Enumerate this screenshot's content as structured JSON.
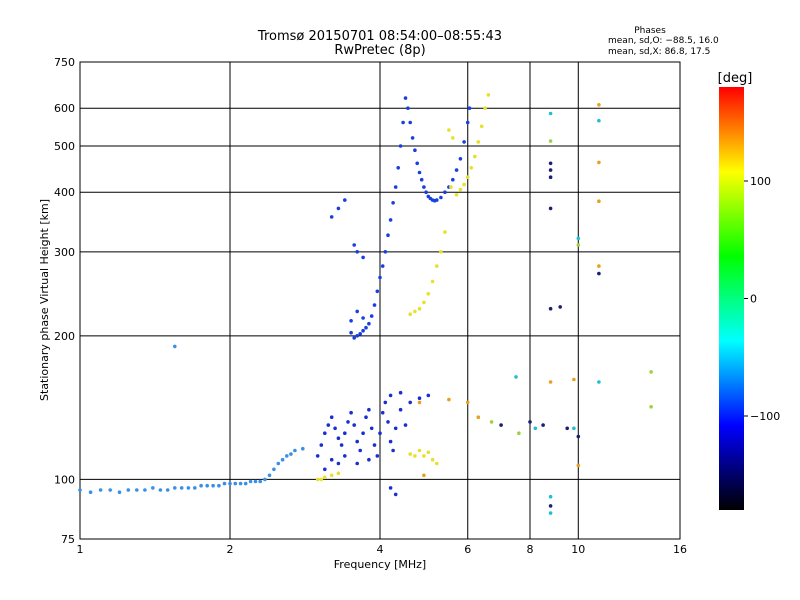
{
  "chart_data": {
    "type": "scatter",
    "title": "Tromsø 20150701 08:54:00–08:55:43",
    "subtitle": "RwPretec (8p)",
    "xlabel": "Frequency [MHz]",
    "ylabel": "Stationary phase Virtual Height [km]",
    "x_scale": "log",
    "y_scale": "log",
    "xlim": [
      1,
      16
    ],
    "ylim": [
      75,
      750
    ],
    "x_ticks": [
      1,
      2,
      4,
      6,
      8,
      10,
      16
    ],
    "x_tick_labels": [
      "1",
      "2",
      "4",
      "6",
      "8",
      "10",
      "16"
    ],
    "y_ticks": [
      75,
      100,
      200,
      300,
      400,
      500,
      600,
      750
    ],
    "y_tick_labels": [
      "75",
      "100",
      "200",
      "300",
      "400",
      "500",
      "600",
      "750"
    ],
    "grid": true,
    "phase_stats": {
      "heading": "Phases",
      "line_o": "mean, sd,O: −88.5, 16.0",
      "line_x": "mean, sd,X:  86.8, 17.5"
    },
    "colorbar": {
      "label": "[deg]",
      "range": [
        -180,
        180
      ],
      "ticks": [
        100,
        0,
        -100
      ],
      "tick_labels": [
        "100",
        "0",
        "−100"
      ],
      "colors": [
        "#ff0000",
        "#ffff00",
        "#00ff00",
        "#00ffff",
        "#0000ff",
        "#000000"
      ]
    },
    "series": [
      {
        "name": "",
        "color": "#3b8fe6",
        "points": [
          [
            1.0,
            95
          ],
          [
            1.05,
            94
          ],
          [
            1.1,
            95
          ],
          [
            1.15,
            95
          ],
          [
            1.2,
            94
          ],
          [
            1.25,
            95
          ],
          [
            1.3,
            95
          ],
          [
            1.35,
            95
          ],
          [
            1.4,
            96
          ],
          [
            1.45,
            95
          ],
          [
            1.5,
            95
          ],
          [
            1.55,
            96
          ],
          [
            1.6,
            96
          ],
          [
            1.65,
            96
          ],
          [
            1.7,
            96
          ],
          [
            1.75,
            97
          ],
          [
            1.8,
            97
          ],
          [
            1.85,
            97
          ],
          [
            1.9,
            97
          ],
          [
            1.95,
            98
          ],
          [
            2.0,
            98
          ],
          [
            2.05,
            98
          ],
          [
            2.1,
            98
          ],
          [
            2.15,
            98
          ],
          [
            2.2,
            99
          ],
          [
            2.25,
            99
          ],
          [
            2.3,
            99
          ],
          [
            2.35,
            100
          ],
          [
            2.4,
            102
          ],
          [
            2.45,
            105
          ],
          [
            2.5,
            108
          ],
          [
            2.55,
            110
          ],
          [
            2.6,
            112
          ],
          [
            2.65,
            113
          ],
          [
            2.7,
            115
          ],
          [
            2.8,
            116
          ],
          [
            1.55,
            190
          ]
        ]
      },
      {
        "name": "",
        "color": "#1a3fe0",
        "points": [
          [
            3.5,
            203
          ],
          [
            3.55,
            198
          ],
          [
            3.6,
            200
          ],
          [
            3.65,
            202
          ],
          [
            3.7,
            205
          ],
          [
            3.75,
            208
          ],
          [
            3.8,
            212
          ],
          [
            3.85,
            220
          ],
          [
            3.9,
            232
          ],
          [
            3.95,
            248
          ],
          [
            4.0,
            265
          ],
          [
            4.05,
            280
          ],
          [
            4.1,
            300
          ],
          [
            4.15,
            325
          ],
          [
            4.2,
            350
          ],
          [
            4.25,
            380
          ],
          [
            4.3,
            410
          ],
          [
            4.35,
            450
          ],
          [
            4.4,
            500
          ],
          [
            4.45,
            560
          ],
          [
            4.5,
            630
          ],
          [
            4.55,
            600
          ],
          [
            4.6,
            560
          ],
          [
            4.65,
            520
          ],
          [
            4.7,
            490
          ],
          [
            4.75,
            460
          ],
          [
            4.8,
            440
          ],
          [
            4.85,
            425
          ],
          [
            4.9,
            410
          ],
          [
            4.95,
            400
          ],
          [
            5.0,
            392
          ],
          [
            5.05,
            388
          ],
          [
            5.1,
            385
          ],
          [
            5.15,
            384
          ],
          [
            5.2,
            385
          ],
          [
            5.3,
            390
          ],
          [
            5.4,
            400
          ],
          [
            5.5,
            410
          ],
          [
            5.6,
            425
          ],
          [
            5.7,
            445
          ],
          [
            5.8,
            470
          ],
          [
            5.9,
            510
          ],
          [
            6.0,
            560
          ],
          [
            6.05,
            600
          ],
          [
            3.5,
            215
          ],
          [
            3.6,
            225
          ],
          [
            3.7,
            218
          ],
          [
            3.2,
            355
          ],
          [
            3.3,
            370
          ],
          [
            3.4,
            385
          ],
          [
            3.55,
            310
          ],
          [
            3.6,
            300
          ],
          [
            3.7,
            292
          ]
        ]
      },
      {
        "name": "",
        "color": "#1a2fd0",
        "points": [
          [
            3.0,
            112
          ],
          [
            3.05,
            118
          ],
          [
            3.1,
            125
          ],
          [
            3.15,
            130
          ],
          [
            3.2,
            135
          ],
          [
            3.25,
            128
          ],
          [
            3.3,
            122
          ],
          [
            3.35,
            118
          ],
          [
            3.4,
            125
          ],
          [
            3.45,
            132
          ],
          [
            3.5,
            138
          ],
          [
            3.55,
            130
          ],
          [
            3.6,
            120
          ],
          [
            3.65,
            115
          ],
          [
            3.7,
            125
          ],
          [
            3.75,
            135
          ],
          [
            3.8,
            140
          ],
          [
            3.85,
            128
          ],
          [
            3.9,
            118
          ],
          [
            3.95,
            112
          ],
          [
            4.0,
            125
          ],
          [
            4.05,
            138
          ],
          [
            4.1,
            145
          ],
          [
            4.15,
            132
          ],
          [
            4.2,
            120
          ],
          [
            4.25,
            115
          ],
          [
            4.3,
            128
          ],
          [
            4.4,
            140
          ],
          [
            4.5,
            130
          ],
          [
            4.6,
            145
          ],
          [
            3.1,
            105
          ],
          [
            3.2,
            110
          ],
          [
            3.3,
            108
          ],
          [
            3.4,
            112
          ],
          [
            3.6,
            108
          ],
          [
            3.8,
            110
          ],
          [
            4.2,
            150
          ],
          [
            4.4,
            152
          ],
          [
            4.8,
            148
          ],
          [
            5.0,
            150
          ],
          [
            4.3,
            93
          ],
          [
            4.2,
            96
          ]
        ]
      },
      {
        "name": "",
        "color": "#e8e02a",
        "points": [
          [
            3.0,
            100
          ],
          [
            3.05,
            100
          ],
          [
            3.1,
            101
          ],
          [
            3.2,
            102
          ],
          [
            3.3,
            103
          ],
          [
            4.6,
            113
          ],
          [
            4.7,
            112
          ],
          [
            4.8,
            115
          ],
          [
            4.9,
            112
          ],
          [
            5.0,
            114
          ],
          [
            5.1,
            110
          ],
          [
            5.2,
            108
          ],
          [
            4.6,
            222
          ],
          [
            4.7,
            225
          ],
          [
            4.8,
            228
          ],
          [
            4.9,
            235
          ],
          [
            5.0,
            245
          ],
          [
            5.1,
            260
          ],
          [
            5.2,
            280
          ],
          [
            5.3,
            300
          ],
          [
            5.4,
            330
          ],
          [
            5.55,
            410
          ],
          [
            5.7,
            395
          ],
          [
            5.8,
            405
          ],
          [
            5.9,
            415
          ],
          [
            6.0,
            430
          ],
          [
            6.1,
            450
          ],
          [
            6.2,
            475
          ],
          [
            6.3,
            510
          ],
          [
            6.4,
            550
          ],
          [
            6.5,
            600
          ],
          [
            6.6,
            640
          ],
          [
            5.5,
            540
          ],
          [
            5.6,
            520
          ]
        ]
      },
      {
        "name": "",
        "color": "#e8a020",
        "points": [
          [
            4.8,
            145
          ],
          [
            5.5,
            147
          ],
          [
            6.0,
            145
          ],
          [
            6.3,
            135
          ],
          [
            8.8,
            160
          ],
          [
            9.8,
            162
          ],
          [
            11.0,
            610
          ],
          [
            11.0,
            462
          ],
          [
            11.0,
            383
          ],
          [
            11.0,
            280
          ],
          [
            10.0,
            107
          ],
          [
            4.9,
            102
          ]
        ]
      },
      {
        "name": "",
        "color": "#1a2070",
        "points": [
          [
            7.0,
            130
          ],
          [
            8.0,
            132
          ],
          [
            8.5,
            130
          ],
          [
            8.8,
            460
          ],
          [
            8.8,
            445
          ],
          [
            8.8,
            430
          ],
          [
            8.8,
            370
          ],
          [
            8.8,
            228
          ],
          [
            9.2,
            230
          ],
          [
            11.0,
            270
          ],
          [
            9.5,
            128
          ],
          [
            10.0,
            123
          ],
          [
            8.8,
            88
          ]
        ]
      },
      {
        "name": "",
        "color": "#20c0d0",
        "points": [
          [
            8.8,
            585
          ],
          [
            10.0,
            320
          ],
          [
            11.0,
            565
          ],
          [
            11.0,
            160
          ],
          [
            9.8,
            128
          ],
          [
            7.5,
            164
          ],
          [
            8.2,
            128
          ],
          [
            8.8,
            85
          ],
          [
            8.8,
            92
          ]
        ]
      },
      {
        "name": "",
        "color": "#a0d040",
        "points": [
          [
            14.0,
            168
          ],
          [
            14.0,
            142
          ],
          [
            8.8,
            512
          ],
          [
            10.0,
            310
          ],
          [
            6.7,
            132
          ],
          [
            7.6,
            125
          ]
        ]
      }
    ]
  }
}
